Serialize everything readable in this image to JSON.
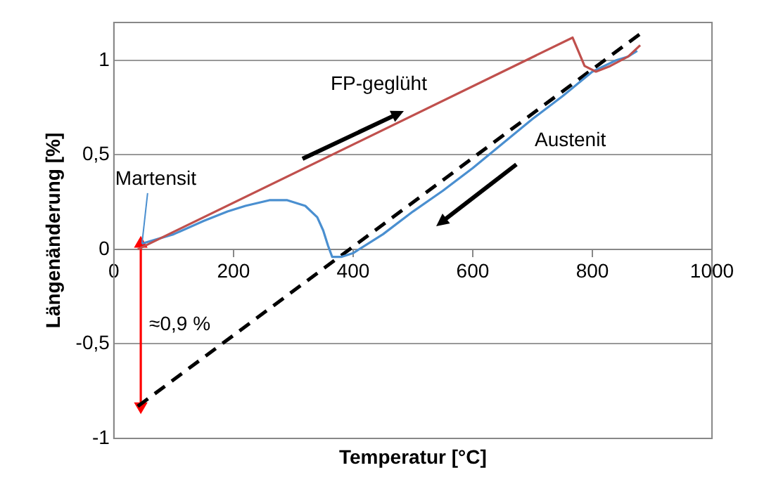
{
  "chart_data": {
    "type": "line",
    "xlabel": "Temperatur [°C]",
    "ylabel": "Längenänderung [%]",
    "xlim": [
      0,
      1000
    ],
    "xticks": [
      0,
      200,
      400,
      600,
      800,
      1000
    ],
    "ylim": [
      -1,
      1.2
    ],
    "yticks": [
      {
        "value": -1,
        "label": "-1"
      },
      {
        "value": -0.5,
        "label": "-0,5"
      },
      {
        "value": 0,
        "label": "0"
      },
      {
        "value": 0.5,
        "label": "0,5"
      },
      {
        "value": 1,
        "label": "1"
      }
    ],
    "grid": "y",
    "legend": false,
    "marker": "none",
    "series": [
      {
        "name": "FP-geglüht",
        "color": "#c0504d",
        "x": [
          40,
          767,
          775,
          787,
          806,
          830,
          860,
          880
        ],
        "values": [
          0,
          1.12,
          1.06,
          0.97,
          0.94,
          0.97,
          1.02,
          1.08
        ]
      },
      {
        "name": "Austenit",
        "color": "#4a8fd0",
        "x": [
          875,
          860,
          840,
          800,
          750,
          700,
          650,
          600,
          550,
          500,
          450,
          400,
          380,
          365,
          358,
          350,
          340,
          320,
          290,
          260,
          220,
          190,
          150,
          100,
          47
        ],
        "values": [
          1.05,
          1.02,
          1.0,
          0.94,
          0.81,
          0.69,
          0.56,
          0.43,
          0.31,
          0.2,
          0.08,
          -0.02,
          -0.04,
          -0.04,
          0.02,
          0.1,
          0.17,
          0.23,
          0.26,
          0.26,
          0.23,
          0.2,
          0.15,
          0.08,
          0.03
        ]
      },
      {
        "color": "#000000",
        "line_style": "dashed",
        "x": [
          40,
          880
        ],
        "values": [
          -0.83,
          1.14
        ]
      },
      {
        "color": "#ff0000",
        "marker": "triangle",
        "x": [
          45,
          45
        ],
        "values": [
          0.03,
          -0.83
        ]
      }
    ],
    "annotations": [
      {
        "text": "Martensit",
        "x": 47,
        "y": 0.03
      },
      {
        "text": "≈0,9 %",
        "x": 45,
        "y": -0.4
      }
    ]
  }
}
